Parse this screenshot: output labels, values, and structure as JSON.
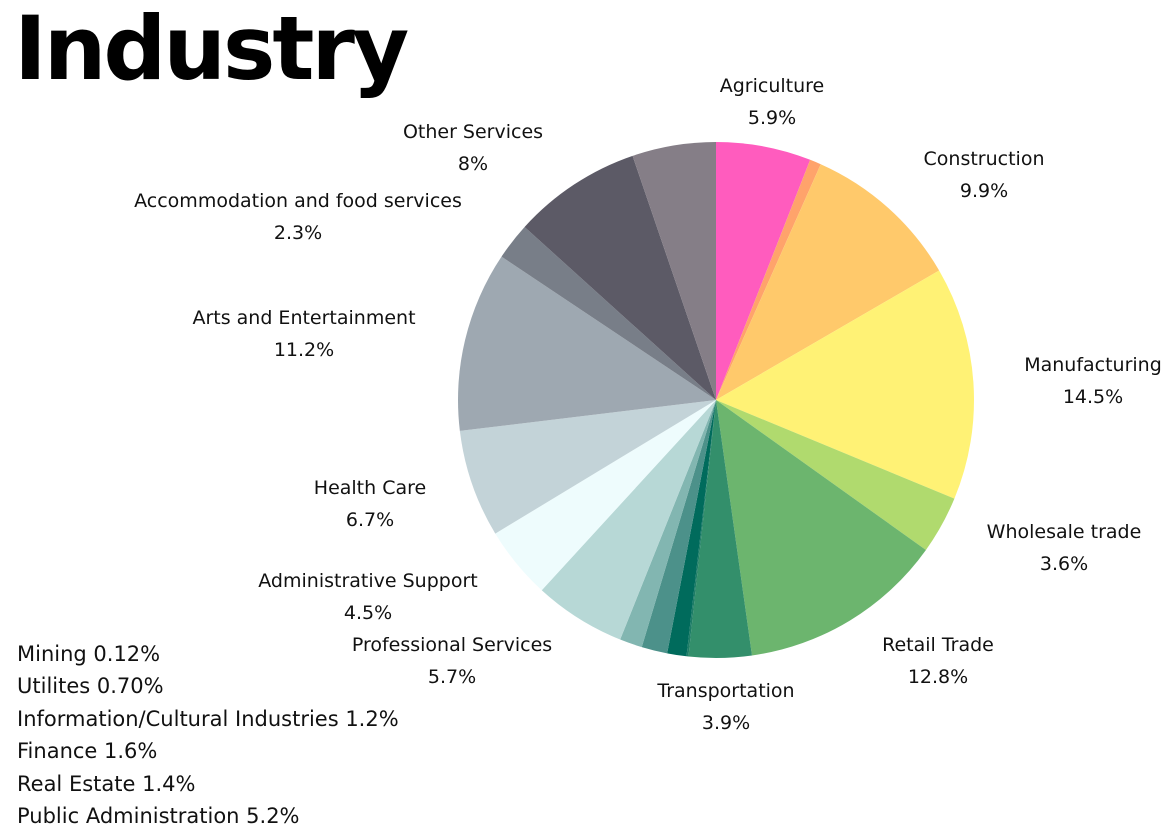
{
  "title": "Industry",
  "chart_data": {
    "type": "pie",
    "title": "Industry",
    "slices": [
      {
        "name": "Agriculture",
        "value": 5.9,
        "label": "5.9%",
        "color": "#FF5CBE"
      },
      {
        "name": "Utilites",
        "value": 0.7,
        "label": "",
        "color": "#FFA36B"
      },
      {
        "name": "Construction",
        "value": 9.9,
        "label": "9.9%",
        "color": "#FFC96B"
      },
      {
        "name": "Manufacturing",
        "value": 14.5,
        "label": "14.5%",
        "color": "#FFF275"
      },
      {
        "name": "Wholesale trade",
        "value": 3.6,
        "label": "3.6%",
        "color": "#B0DA6E"
      },
      {
        "name": "Retail Trade",
        "value": 12.8,
        "label": "12.8%",
        "color": "#6CB56E"
      },
      {
        "name": "Transportation",
        "value": 3.9,
        "label": "3.9%",
        "color": "#338F6B"
      },
      {
        "name": "Mining",
        "value": 0.12,
        "label": "",
        "color": "#1E7D66"
      },
      {
        "name": "Information/Cultural Industries",
        "value": 1.2,
        "label": "",
        "color": "#006B5C"
      },
      {
        "name": "Finance",
        "value": 1.6,
        "label": "",
        "color": "#4C918A"
      },
      {
        "name": "Real Estate",
        "value": 1.4,
        "label": "",
        "color": "#82B6B1"
      },
      {
        "name": "Professional Services",
        "value": 5.7,
        "label": "5.7%",
        "color": "#B7D8D6"
      },
      {
        "name": "Administrative Support",
        "value": 4.5,
        "label": "4.5%",
        "color": "#EEFCFD"
      },
      {
        "name": "Health Care",
        "value": 6.7,
        "label": "6.7%",
        "color": "#C3D3D8"
      },
      {
        "name": "Arts and Entertainment",
        "value": 11.2,
        "label": "11.2%",
        "color": "#9EA8B1"
      },
      {
        "name": "Accommodation and food services",
        "value": 2.3,
        "label": "2.3%",
        "color": "#787E88"
      },
      {
        "name": "Other Services",
        "value": 8.0,
        "label": "8%",
        "color": "#5C5A66"
      },
      {
        "name": "Public Administration",
        "value": 5.2,
        "label": "",
        "color": "#857E87"
      }
    ],
    "side_notes": [
      "Mining 0.12%",
      "Utilites 0.70%",
      "Information/Cultural Industries 1.2%",
      "Finance 1.6%",
      "Real Estate 1.4%",
      "Public Administration 5.2%"
    ]
  }
}
